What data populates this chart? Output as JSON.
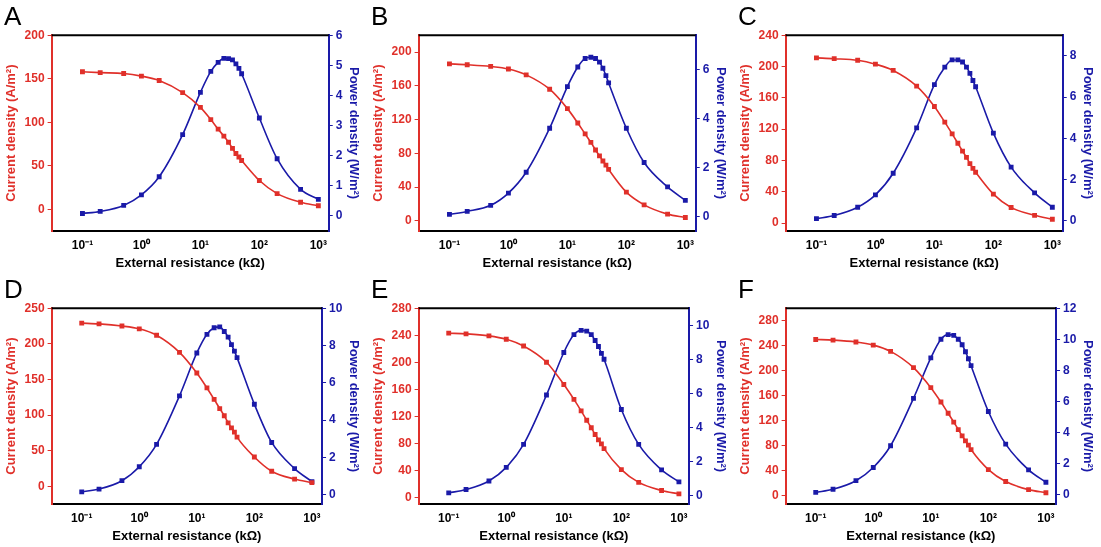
{
  "chart_data": [
    {
      "type": "line",
      "title": "A",
      "xlabel": "External resistance (kΩ)",
      "ylabel": "Current density (A/m²)",
      "y2label": "Power density (W/m²)",
      "log": "x",
      "grid": false,
      "legend": false,
      "marker": "square",
      "x": [
        0.1,
        0.2,
        0.5,
        1,
        2,
        5,
        10,
        15,
        20,
        25,
        30,
        35,
        40,
        45,
        50,
        100,
        200,
        500,
        1000
      ],
      "xlim": [
        0.03,
        1500
      ],
      "xticks": [
        {
          "value": 0.1,
          "label": "10⁻¹"
        },
        {
          "value": 1,
          "label": "10⁰"
        },
        {
          "value": 10,
          "label": "10¹"
        },
        {
          "value": 100,
          "label": "10²"
        },
        {
          "value": 1000,
          "label": "10³"
        }
      ],
      "ylim": [
        -25,
        200
      ],
      "yticks": [
        0,
        50,
        100,
        150,
        200
      ],
      "y2lim": [
        -0.5,
        6
      ],
      "y2ticks": [
        0,
        1,
        2,
        3,
        4,
        5,
        6
      ],
      "series": [
        {
          "color": "#e0302a",
          "values": [
            158,
            157,
            156,
            153,
            148,
            134,
            117,
            103,
            92,
            84,
            77,
            70,
            64,
            60,
            56,
            33,
            18,
            8,
            4
          ]
        },
        {
          "color": "#1a1aa8",
          "axis": "y2",
          "values": [
            0.08,
            0.15,
            0.35,
            0.7,
            1.3,
            2.7,
            4.1,
            4.8,
            5.1,
            5.23,
            5.22,
            5.18,
            5.05,
            4.9,
            4.72,
            3.25,
            1.9,
            0.88,
            0.55
          ]
        }
      ]
    },
    {
      "type": "line",
      "title": "B",
      "xlabel": "External resistance (kΩ)",
      "ylabel": "Current density (A/m²)",
      "y2label": "Power density (W/m²)",
      "log": "x",
      "grid": false,
      "legend": false,
      "marker": "square",
      "x": [
        0.1,
        0.2,
        0.5,
        1,
        2,
        5,
        10,
        15,
        20,
        25,
        30,
        35,
        40,
        45,
        50,
        100,
        200,
        500,
        1000
      ],
      "xlim": [
        0.03,
        1500
      ],
      "xticks": [
        {
          "value": 0.1,
          "label": "10⁻¹"
        },
        {
          "value": 1,
          "label": "10⁰"
        },
        {
          "value": 10,
          "label": "10¹"
        },
        {
          "value": 100,
          "label": "10²"
        },
        {
          "value": 1000,
          "label": "10³"
        }
      ],
      "ylim": [
        -12,
        220
      ],
      "yticks": [
        0,
        40,
        80,
        120,
        160,
        200
      ],
      "y2lim": [
        -0.6,
        7.4
      ],
      "y2ticks": [
        0,
        2,
        4,
        6
      ],
      "series": [
        {
          "color": "#e0302a",
          "values": [
            186,
            185,
            183,
            180,
            173,
            156,
            133,
            116,
            103,
            93,
            84,
            77,
            71,
            66,
            61,
            34,
            19,
            8,
            4
          ]
        },
        {
          "color": "#1a1aa8",
          "axis": "y2",
          "values": [
            0.08,
            0.2,
            0.45,
            0.95,
            1.8,
            3.6,
            5.3,
            6.1,
            6.45,
            6.5,
            6.45,
            6.3,
            6.05,
            5.75,
            5.45,
            3.6,
            2.2,
            1.2,
            0.65
          ]
        }
      ]
    },
    {
      "type": "line",
      "title": "C",
      "xlabel": "External resistance (kΩ)",
      "ylabel": "Current density (A/m²)",
      "y2label": "Power density (W/m²)",
      "log": "x",
      "grid": false,
      "legend": false,
      "marker": "square",
      "x": [
        0.1,
        0.2,
        0.5,
        1,
        2,
        5,
        10,
        15,
        20,
        25,
        30,
        35,
        40,
        45,
        50,
        100,
        200,
        500,
        1000
      ],
      "xlim": [
        0.03,
        1500
      ],
      "xticks": [
        {
          "value": 0.1,
          "label": "10⁻¹"
        },
        {
          "value": 1,
          "label": "10⁰"
        },
        {
          "value": 10,
          "label": "10¹"
        },
        {
          "value": 100,
          "label": "10²"
        },
        {
          "value": 1000,
          "label": "10³"
        }
      ],
      "ylim": [
        -10,
        240
      ],
      "yticks": [
        0,
        40,
        80,
        120,
        160,
        200,
        240
      ],
      "y2lim": [
        -0.5,
        9
      ],
      "y2ticks": [
        0,
        2,
        4,
        6,
        8
      ],
      "series": [
        {
          "color": "#e0302a",
          "values": [
            211,
            210,
            208,
            203,
            195,
            175,
            149,
            129,
            114,
            102,
            92,
            84,
            76,
            70,
            65,
            37,
            20,
            10,
            5
          ]
        },
        {
          "color": "#1a1aa8",
          "axis": "y2",
          "values": [
            0.1,
            0.25,
            0.65,
            1.25,
            2.3,
            4.5,
            6.6,
            7.45,
            7.8,
            7.8,
            7.7,
            7.45,
            7.15,
            6.8,
            6.5,
            4.25,
            2.6,
            1.35,
            0.65
          ]
        }
      ]
    },
    {
      "type": "line",
      "title": "D",
      "xlabel": "External resistance (kΩ)",
      "ylabel": "Current density (A/m²)",
      "y2label": "Power density (W/m²)",
      "log": "x",
      "grid": false,
      "legend": false,
      "marker": "square",
      "x": [
        0.1,
        0.2,
        0.5,
        1,
        2,
        5,
        10,
        15,
        20,
        25,
        30,
        35,
        40,
        45,
        50,
        100,
        200,
        500,
        1000
      ],
      "xlim": [
        0.03,
        1500
      ],
      "xticks": [
        {
          "value": 0.1,
          "label": "10⁻¹"
        },
        {
          "value": 1,
          "label": "10⁰"
        },
        {
          "value": 10,
          "label": "10¹"
        },
        {
          "value": 100,
          "label": "10²"
        },
        {
          "value": 1000,
          "label": "10³"
        }
      ],
      "ylim": [
        -25,
        250
      ],
      "yticks": [
        0,
        50,
        100,
        150,
        200,
        250
      ],
      "y2lim": [
        -0.5,
        10
      ],
      "y2ticks": [
        0,
        2,
        4,
        6,
        8,
        10
      ],
      "series": [
        {
          "color": "#e0302a",
          "values": [
            229,
            228,
            225,
            221,
            212,
            188,
            159,
            138,
            122,
            109,
            99,
            89,
            82,
            76,
            69,
            41,
            21,
            10,
            5
          ]
        },
        {
          "color": "#1a1aa8",
          "axis": "y2",
          "values": [
            0.15,
            0.3,
            0.75,
            1.5,
            2.7,
            5.3,
            7.6,
            8.6,
            8.95,
            9.0,
            8.75,
            8.45,
            8.05,
            7.7,
            7.35,
            4.85,
            2.8,
            1.4,
            0.7
          ]
        }
      ]
    },
    {
      "type": "line",
      "title": "E",
      "xlabel": "External resistance (kΩ)",
      "ylabel": "Current density (A/m²)",
      "y2label": "Power density (W/m²)",
      "log": "x",
      "grid": false,
      "legend": false,
      "marker": "square",
      "x": [
        0.1,
        0.2,
        0.5,
        1,
        2,
        5,
        10,
        15,
        20,
        25,
        30,
        35,
        40,
        45,
        50,
        100,
        200,
        500,
        1000
      ],
      "xlim": [
        0.03,
        1500
      ],
      "xticks": [
        {
          "value": 0.1,
          "label": "10⁻¹"
        },
        {
          "value": 1,
          "label": "10⁰"
        },
        {
          "value": 10,
          "label": "10¹"
        },
        {
          "value": 100,
          "label": "10²"
        },
        {
          "value": 1000,
          "label": "10³"
        }
      ],
      "ylim": [
        -10,
        280
      ],
      "yticks": [
        0,
        40,
        80,
        120,
        160,
        200,
        240,
        280
      ],
      "y2lim": [
        -0.5,
        11
      ],
      "y2ticks": [
        0,
        2,
        4,
        6,
        8,
        10
      ],
      "series": [
        {
          "color": "#e0302a",
          "values": [
            243,
            242,
            239,
            234,
            224,
            200,
            167,
            145,
            128,
            114,
            103,
            93,
            85,
            79,
            72,
            41,
            22,
            10,
            5
          ]
        },
        {
          "color": "#1a1aa8",
          "axis": "y2",
          "values": [
            0.15,
            0.35,
            0.85,
            1.65,
            3.0,
            5.9,
            8.4,
            9.45,
            9.7,
            9.65,
            9.45,
            9.1,
            8.75,
            8.35,
            8.0,
            5.05,
            3.0,
            1.5,
            0.8
          ]
        }
      ]
    },
    {
      "type": "line",
      "title": "F",
      "xlabel": "External resistance (kΩ)",
      "ylabel": "Current density (A/m²)",
      "y2label": "Power density (W/m²)",
      "log": "x",
      "grid": false,
      "legend": false,
      "marker": "square",
      "x": [
        0.1,
        0.2,
        0.5,
        1,
        2,
        5,
        10,
        15,
        20,
        25,
        30,
        35,
        40,
        45,
        50,
        100,
        200,
        500,
        1000
      ],
      "xlim": [
        0.03,
        1500
      ],
      "xticks": [
        {
          "value": 0.1,
          "label": "10⁻¹"
        },
        {
          "value": 1,
          "label": "10⁰"
        },
        {
          "value": 10,
          "label": "10¹"
        },
        {
          "value": 100,
          "label": "10²"
        },
        {
          "value": 1000,
          "label": "10³"
        }
      ],
      "ylim": [
        -13,
        300
      ],
      "yticks": [
        0,
        40,
        80,
        120,
        160,
        200,
        240,
        280
      ],
      "y2lim": [
        -0.6,
        12
      ],
      "y2ticks": [
        0,
        2,
        4,
        6,
        8,
        10,
        12
      ],
      "series": [
        {
          "color": "#e0302a",
          "values": [
            250,
            249,
            246,
            241,
            231,
            205,
            173,
            150,
            132,
            118,
            106,
            96,
            88,
            81,
            74,
            42,
            23,
            10,
            5
          ]
        },
        {
          "color": "#1a1aa8",
          "axis": "y2",
          "values": [
            0.15,
            0.35,
            0.9,
            1.75,
            3.15,
            6.2,
            8.8,
            10.0,
            10.3,
            10.25,
            10.0,
            9.65,
            9.2,
            8.75,
            8.3,
            5.35,
            3.25,
            1.6,
            0.8
          ]
        }
      ]
    }
  ]
}
